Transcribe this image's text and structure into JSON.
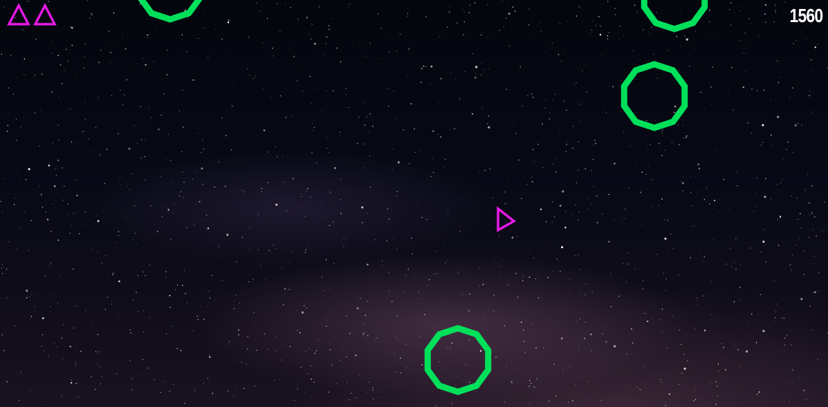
{
  "hud": {
    "score": "1560",
    "lives": 2
  },
  "colors": {
    "ship": "#e619e6",
    "asteroid": "#00e05a",
    "score_text": "#ffffff"
  },
  "icons": {
    "life": "ship-triangle-icon",
    "asteroid": "octagon-ring"
  }
}
